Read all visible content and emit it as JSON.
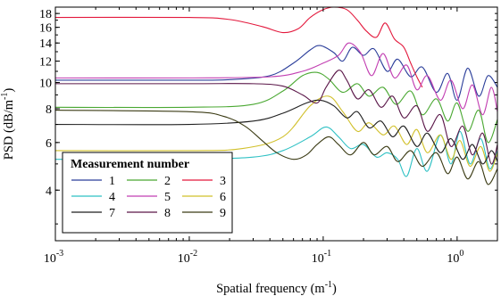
{
  "chart_data": {
    "type": "line",
    "title": "",
    "xlabel": "Spatial frequency (m",
    "xlabel_sup": "-1",
    "xlabel_tail": ")",
    "ylabel": "PSD (dB/m",
    "ylabel_sup": "-1",
    "ylabel_tail": ")",
    "xscale": "log",
    "yscale": "log",
    "xlim": [
      0.001,
      2
    ],
    "ylim": [
      2.6,
      19
    ],
    "grid": false,
    "x_ticks": [
      {
        "value": 0.001,
        "base": "10",
        "exp": "-3"
      },
      {
        "value": 0.01,
        "base": "10",
        "exp": "-2"
      },
      {
        "value": 0.1,
        "base": "10",
        "exp": "-1"
      },
      {
        "value": 1,
        "base": "10",
        "exp": "0"
      }
    ],
    "y_ticks": [
      {
        "value": 4,
        "label": "4"
      },
      {
        "value": 6,
        "label": "6"
      },
      {
        "value": 8,
        "label": "8"
      },
      {
        "value": 10,
        "label": "10"
      },
      {
        "value": 12,
        "label": "12"
      },
      {
        "value": 14,
        "label": "14"
      },
      {
        "value": 16,
        "label": "16"
      },
      {
        "value": 18,
        "label": "18"
      }
    ],
    "legend": {
      "title": "Measurement number",
      "placement": "bottom-left",
      "columns": 3
    },
    "series": [
      {
        "name": "1",
        "color": "#2b3e9a",
        "points": [
          [
            0.001,
            10.2
          ],
          [
            0.01,
            10.2
          ],
          [
            0.02,
            10.25
          ],
          [
            0.04,
            10.6
          ],
          [
            0.06,
            11.8
          ],
          [
            0.08,
            13.2
          ],
          [
            0.095,
            13.7
          ],
          [
            0.12,
            12.9
          ],
          [
            0.14,
            12.0
          ],
          [
            0.165,
            13.5
          ],
          [
            0.2,
            12.6
          ],
          [
            0.24,
            13.3
          ],
          [
            0.3,
            11.0
          ],
          [
            0.36,
            12.2
          ],
          [
            0.45,
            10.5
          ],
          [
            0.55,
            11.4
          ],
          [
            0.7,
            9.2
          ],
          [
            0.85,
            10.8
          ],
          [
            1.0,
            8.6
          ],
          [
            1.2,
            11.3
          ],
          [
            1.45,
            8.9
          ],
          [
            1.7,
            10.6
          ],
          [
            2.0,
            9.6
          ]
        ]
      },
      {
        "name": "2",
        "color": "#4aa832",
        "points": [
          [
            0.001,
            8.1
          ],
          [
            0.01,
            8.1
          ],
          [
            0.03,
            8.3
          ],
          [
            0.05,
            9.3
          ],
          [
            0.07,
            10.6
          ],
          [
            0.09,
            10.9
          ],
          [
            0.11,
            10.3
          ],
          [
            0.14,
            9.2
          ],
          [
            0.18,
            9.9
          ],
          [
            0.22,
            8.9
          ],
          [
            0.28,
            9.6
          ],
          [
            0.35,
            8.3
          ],
          [
            0.45,
            9.3
          ],
          [
            0.55,
            7.6
          ],
          [
            0.7,
            8.7
          ],
          [
            0.85,
            7.2
          ],
          [
            1.0,
            8.4
          ],
          [
            1.2,
            6.6
          ],
          [
            1.45,
            7.9
          ],
          [
            1.7,
            6.0
          ],
          [
            2.0,
            7.3
          ]
        ]
      },
      {
        "name": "3",
        "color": "#e3183c",
        "points": [
          [
            0.001,
            17.4
          ],
          [
            0.01,
            17.4
          ],
          [
            0.02,
            17.1
          ],
          [
            0.035,
            16.1
          ],
          [
            0.05,
            15.3
          ],
          [
            0.065,
            15.8
          ],
          [
            0.08,
            17.4
          ],
          [
            0.1,
            18.6
          ],
          [
            0.12,
            19.0
          ],
          [
            0.15,
            18.6
          ],
          [
            0.18,
            17.0
          ],
          [
            0.21,
            15.5
          ],
          [
            0.25,
            14.7
          ],
          [
            0.29,
            16.6
          ],
          [
            0.34,
            14.5
          ],
          [
            0.4,
            13.5
          ],
          [
            0.45,
            11.8
          ],
          [
            0.5,
            10.5
          ],
          [
            0.55,
            9.6
          ]
        ]
      },
      {
        "name": "4",
        "color": "#2fc1c4",
        "points": [
          [
            0.001,
            5.2
          ],
          [
            0.01,
            5.2
          ],
          [
            0.03,
            5.3
          ],
          [
            0.05,
            5.6
          ],
          [
            0.08,
            6.3
          ],
          [
            0.105,
            6.85
          ],
          [
            0.13,
            6.3
          ],
          [
            0.16,
            5.7
          ],
          [
            0.2,
            5.9
          ],
          [
            0.25,
            5.3
          ],
          [
            0.3,
            5.5
          ],
          [
            0.36,
            5.2
          ],
          [
            0.42,
            4.5
          ],
          [
            0.5,
            5.7
          ],
          [
            0.6,
            4.7
          ],
          [
            0.75,
            6.4
          ],
          [
            0.9,
            5.0
          ],
          [
            1.05,
            6.6
          ],
          [
            1.25,
            5.0
          ],
          [
            1.5,
            6.2
          ],
          [
            1.75,
            4.8
          ],
          [
            2.0,
            5.6
          ]
        ]
      },
      {
        "name": "5",
        "color": "#c23fb2",
        "points": [
          [
            0.001,
            10.4
          ],
          [
            0.01,
            10.4
          ],
          [
            0.04,
            10.5
          ],
          [
            0.07,
            11.0
          ],
          [
            0.1,
            11.8
          ],
          [
            0.13,
            12.6
          ],
          [
            0.155,
            14.0
          ],
          [
            0.19,
            12.9
          ],
          [
            0.23,
            10.6
          ],
          [
            0.28,
            12.8
          ],
          [
            0.34,
            10.4
          ],
          [
            0.42,
            11.6
          ],
          [
            0.5,
            9.4
          ],
          [
            0.6,
            10.6
          ],
          [
            0.75,
            8.6
          ],
          [
            0.9,
            10.2
          ],
          [
            1.1,
            8.0
          ],
          [
            1.3,
            9.8
          ],
          [
            1.55,
            7.6
          ],
          [
            1.8,
            9.6
          ],
          [
            2.0,
            7.8
          ]
        ]
      },
      {
        "name": "6",
        "color": "#d1c02b",
        "points": [
          [
            0.001,
            5.6
          ],
          [
            0.01,
            5.6
          ],
          [
            0.025,
            5.7
          ],
          [
            0.05,
            6.3
          ],
          [
            0.08,
            8.2
          ],
          [
            0.11,
            8.9
          ],
          [
            0.14,
            7.8
          ],
          [
            0.18,
            6.6
          ],
          [
            0.22,
            7.1
          ],
          [
            0.28,
            6.4
          ],
          [
            0.34,
            6.9
          ],
          [
            0.42,
            5.9
          ],
          [
            0.5,
            6.7
          ],
          [
            0.6,
            5.5
          ],
          [
            0.75,
            6.4
          ],
          [
            0.9,
            5.2
          ],
          [
            1.05,
            6.1
          ],
          [
            1.25,
            4.9
          ],
          [
            1.5,
            5.8
          ],
          [
            1.75,
            4.7
          ],
          [
            2.0,
            5.5
          ]
        ]
      },
      {
        "name": "7",
        "color": "#1f1f1f",
        "points": [
          [
            0.001,
            7.0
          ],
          [
            0.01,
            7.0
          ],
          [
            0.03,
            7.2
          ],
          [
            0.05,
            7.7
          ],
          [
            0.075,
            8.4
          ],
          [
            0.095,
            8.6
          ],
          [
            0.12,
            8.2
          ],
          [
            0.15,
            7.4
          ],
          [
            0.18,
            7.8
          ],
          [
            0.22,
            6.8
          ],
          [
            0.27,
            7.2
          ],
          [
            0.33,
            6.3
          ],
          [
            0.4,
            6.9
          ],
          [
            0.5,
            5.8
          ],
          [
            0.6,
            6.5
          ],
          [
            0.75,
            5.5
          ],
          [
            0.9,
            6.2
          ],
          [
            1.1,
            5.2
          ],
          [
            1.3,
            5.9
          ],
          [
            1.55,
            5.0
          ],
          [
            1.8,
            5.6
          ],
          [
            2.0,
            5.1
          ]
        ]
      },
      {
        "name": "8",
        "color": "#5a1648",
        "points": [
          [
            0.001,
            9.9
          ],
          [
            0.01,
            9.9
          ],
          [
            0.03,
            9.9
          ],
          [
            0.05,
            9.7
          ],
          [
            0.07,
            9.0
          ],
          [
            0.09,
            8.4
          ],
          [
            0.105,
            9.6
          ],
          [
            0.13,
            11.1
          ],
          [
            0.15,
            10.2
          ],
          [
            0.18,
            8.7
          ],
          [
            0.22,
            9.4
          ],
          [
            0.27,
            8.1
          ],
          [
            0.33,
            8.9
          ],
          [
            0.4,
            7.4
          ],
          [
            0.5,
            8.2
          ],
          [
            0.6,
            6.6
          ],
          [
            0.75,
            7.6
          ],
          [
            0.9,
            5.8
          ],
          [
            1.1,
            6.9
          ],
          [
            1.3,
            5.4
          ],
          [
            1.55,
            6.5
          ],
          [
            1.8,
            5.0
          ],
          [
            2.0,
            5.9
          ]
        ]
      },
      {
        "name": "9",
        "color": "#3b3b14",
        "points": [
          [
            0.001,
            7.9
          ],
          [
            0.01,
            7.8
          ],
          [
            0.018,
            7.5
          ],
          [
            0.026,
            6.9
          ],
          [
            0.035,
            6.1
          ],
          [
            0.045,
            5.5
          ],
          [
            0.06,
            5.2
          ],
          [
            0.075,
            5.4
          ],
          [
            0.09,
            5.9
          ],
          [
            0.11,
            6.3
          ],
          [
            0.13,
            5.9
          ],
          [
            0.16,
            5.4
          ],
          [
            0.2,
            6.0
          ],
          [
            0.24,
            5.4
          ],
          [
            0.3,
            5.8
          ],
          [
            0.36,
            5.1
          ],
          [
            0.45,
            5.6
          ],
          [
            0.55,
            4.9
          ],
          [
            0.7,
            5.5
          ],
          [
            0.85,
            4.6
          ],
          [
            1.0,
            5.3
          ],
          [
            1.2,
            4.4
          ],
          [
            1.45,
            5.1
          ],
          [
            1.7,
            4.2
          ],
          [
            2.0,
            4.8
          ]
        ]
      }
    ]
  }
}
